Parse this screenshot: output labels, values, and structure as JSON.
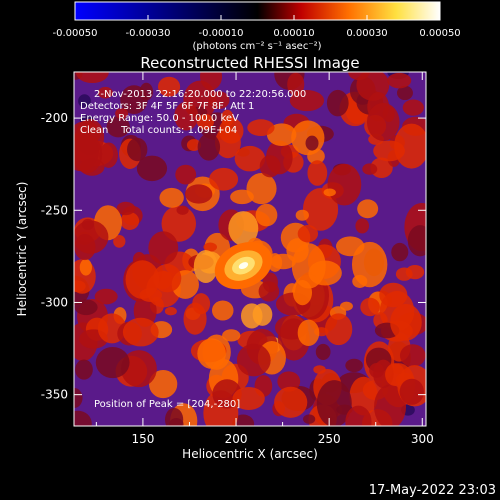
{
  "chart_data": {
    "type": "heatmap",
    "title": "Reconstructed RHESSI Image",
    "xlabel": "Heliocentric X (arcsec)",
    "ylabel": "Heliocentric Y (arcsec)",
    "xlim": [
      113,
      302
    ],
    "ylim": [
      -367,
      -175
    ],
    "xticks": [
      150,
      200,
      250,
      300
    ],
    "yticks": [
      -200,
      -250,
      -300,
      -350
    ],
    "colorbar": {
      "range": [
        -0.0005,
        0.0005
      ],
      "ticks": [
        "-0.00050",
        "-0.00030",
        "-0.00010",
        "0.00010",
        "0.00030",
        "0.00050"
      ],
      "unit_label": "(photons cm⁻² s⁻¹ asec⁻²)",
      "colors": [
        "#0000ff",
        "#000000",
        "#d00000",
        "#ff8000",
        "#ffff60",
        "#ffffff"
      ]
    },
    "annotations": [
      "2-Nov-2013 22:16:20.000 to 22:20:56.000",
      "Detectors: 3F 4F 5F 6F 7F 8F, Att 1",
      "Energy Range: 50.0 - 100.0 keV",
      "Clean    Total counts: 1.09E+04"
    ],
    "peak_label": "Position of Peak = [204,-280]",
    "peak": {
      "x": 204,
      "y": -280
    },
    "background_color": "#5a1a8a"
  },
  "timestamp": "17-May-2022 23:03"
}
